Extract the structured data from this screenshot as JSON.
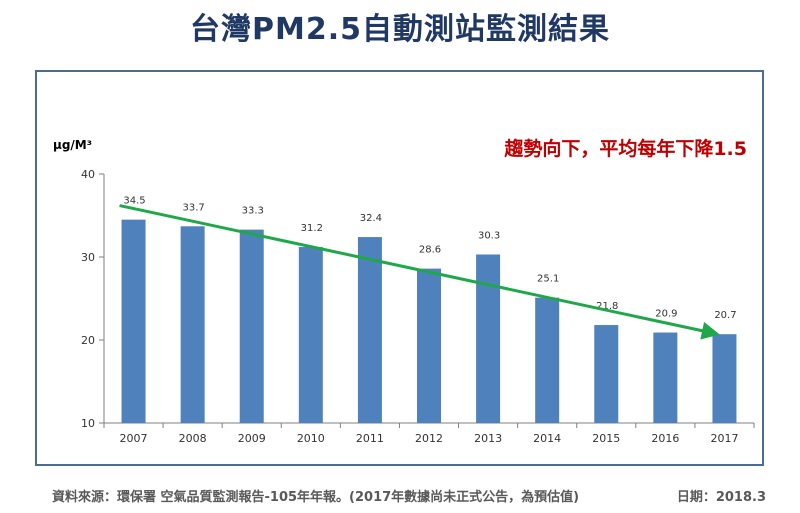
{
  "title": "台灣PM2.5自動測站監測結果",
  "colors": {
    "bar": "#4f81bd",
    "trend": "#1fa84a",
    "annotation": "#c00000",
    "title": "#1f3864"
  },
  "chart_data": {
    "type": "bar",
    "title": "台灣PM2.5自動測站監測結果",
    "ylabel": "μg/M³",
    "xlabel": "",
    "ylim": [
      10,
      40
    ],
    "yticks": [
      "10",
      "20",
      "30",
      "40"
    ],
    "categories": [
      "2007",
      "2008",
      "2009",
      "2010",
      "2011",
      "2012",
      "2013",
      "2014",
      "2015",
      "2016",
      "2017"
    ],
    "values": [
      34.5,
      33.7,
      33.3,
      31.2,
      32.4,
      28.6,
      30.3,
      25.1,
      21.8,
      20.9,
      20.7
    ],
    "value_labels": [
      "34.5",
      "33.7",
      "33.3",
      "31.2",
      "32.4",
      "28.6",
      "30.3",
      "25.1",
      "21.8",
      "20.9",
      "20.7"
    ],
    "trend": {
      "from": {
        "x": "2007",
        "y": 36.2
      },
      "to": {
        "x": "2017",
        "y": 20.8
      }
    },
    "annotation": "趨勢向下，平均每年下降1.5",
    "grid": false,
    "legend": "none"
  },
  "footer": {
    "source": "資料來源：環保署 空氣品質監測報告-105年年報。(2017年數據尚未正式公告，為預估值)",
    "date": "日期：2018.3"
  }
}
